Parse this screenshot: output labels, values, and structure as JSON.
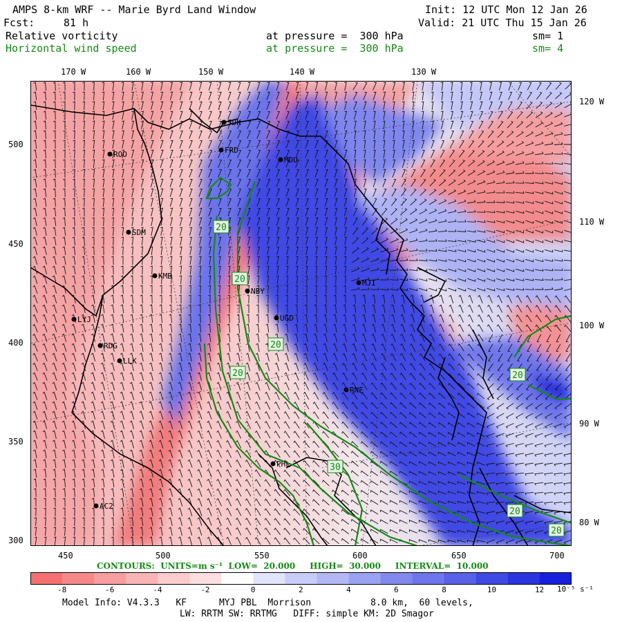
{
  "header": {
    "title": "AMPS 8-km WRF -- Marie Byrd Land Window",
    "init": "Init: 12 UTC Mon 12 Jan 26",
    "fcst_label": "Fcst:",
    "fcst_value": "81 h",
    "valid": "Valid: 21 UTC Thu 15 Jan 26"
  },
  "fields": [
    {
      "name": "Relative vorticity",
      "level": "at pressure =  300 hPa",
      "sm": "sm= 1",
      "color": "#000000"
    },
    {
      "name": "Horizontal wind speed",
      "level": "at pressure =  300 hPa",
      "sm": "sm= 4",
      "color": "#138a13"
    }
  ],
  "axes": {
    "lon_top": [
      "170 W",
      "160 W",
      "150 W",
      "140 W",
      "130 W"
    ],
    "lon_right": [
      "120 W",
      "110 W",
      "100 W",
      "90 W",
      "80 W"
    ],
    "y_ticks": [
      "500",
      "450",
      "400",
      "350",
      "300"
    ],
    "x_ticks": [
      "450",
      "500",
      "550",
      "600",
      "650",
      "700"
    ]
  },
  "stations": [
    "SDK",
    "FRD",
    "MDU",
    "ROO",
    "SDM",
    "KMB",
    "NBY",
    "MJI",
    "LYJ",
    "UGD",
    "RDG",
    "LLK",
    "RNE",
    "PHL",
    "AC2"
  ],
  "contour_labels": [
    "20",
    "20",
    "20",
    "20",
    "30",
    "20",
    "20",
    "20"
  ],
  "contour_info": {
    "label": "CONTOURS:",
    "units": "UNITS=m s⁻¹",
    "low": "LOW=  20.000",
    "high": "HIGH=  30.000",
    "interval": "INTERVAL=  10.000"
  },
  "colorbar": {
    "ticks": [
      "-8",
      "-6",
      "-4",
      "-2",
      "0",
      "2",
      "4",
      "6",
      "8",
      "10",
      "12"
    ],
    "units": "10⁻⁵ s⁻¹",
    "colors": [
      "#f57171",
      "#f7888a",
      "#f79ea0",
      "#f8b5b6",
      "#facccd",
      "#fbdedf",
      "#ffffff",
      "#e2e4fb",
      "#c8ccf8",
      "#b3b8f5",
      "#9ba2f2",
      "#8189ef",
      "#6d76eb",
      "#5861e7",
      "#3f49e3",
      "#2a34df",
      "#1620dc"
    ]
  },
  "footer": {
    "line1": "Model Info: V4.3.3   KF      MYJ PBL  Morrison           8.0 km,  60 levels,",
    "line2": "LW: RRTM SW: RRTMG   DIFF: simple KM: 2D Smagor"
  }
}
